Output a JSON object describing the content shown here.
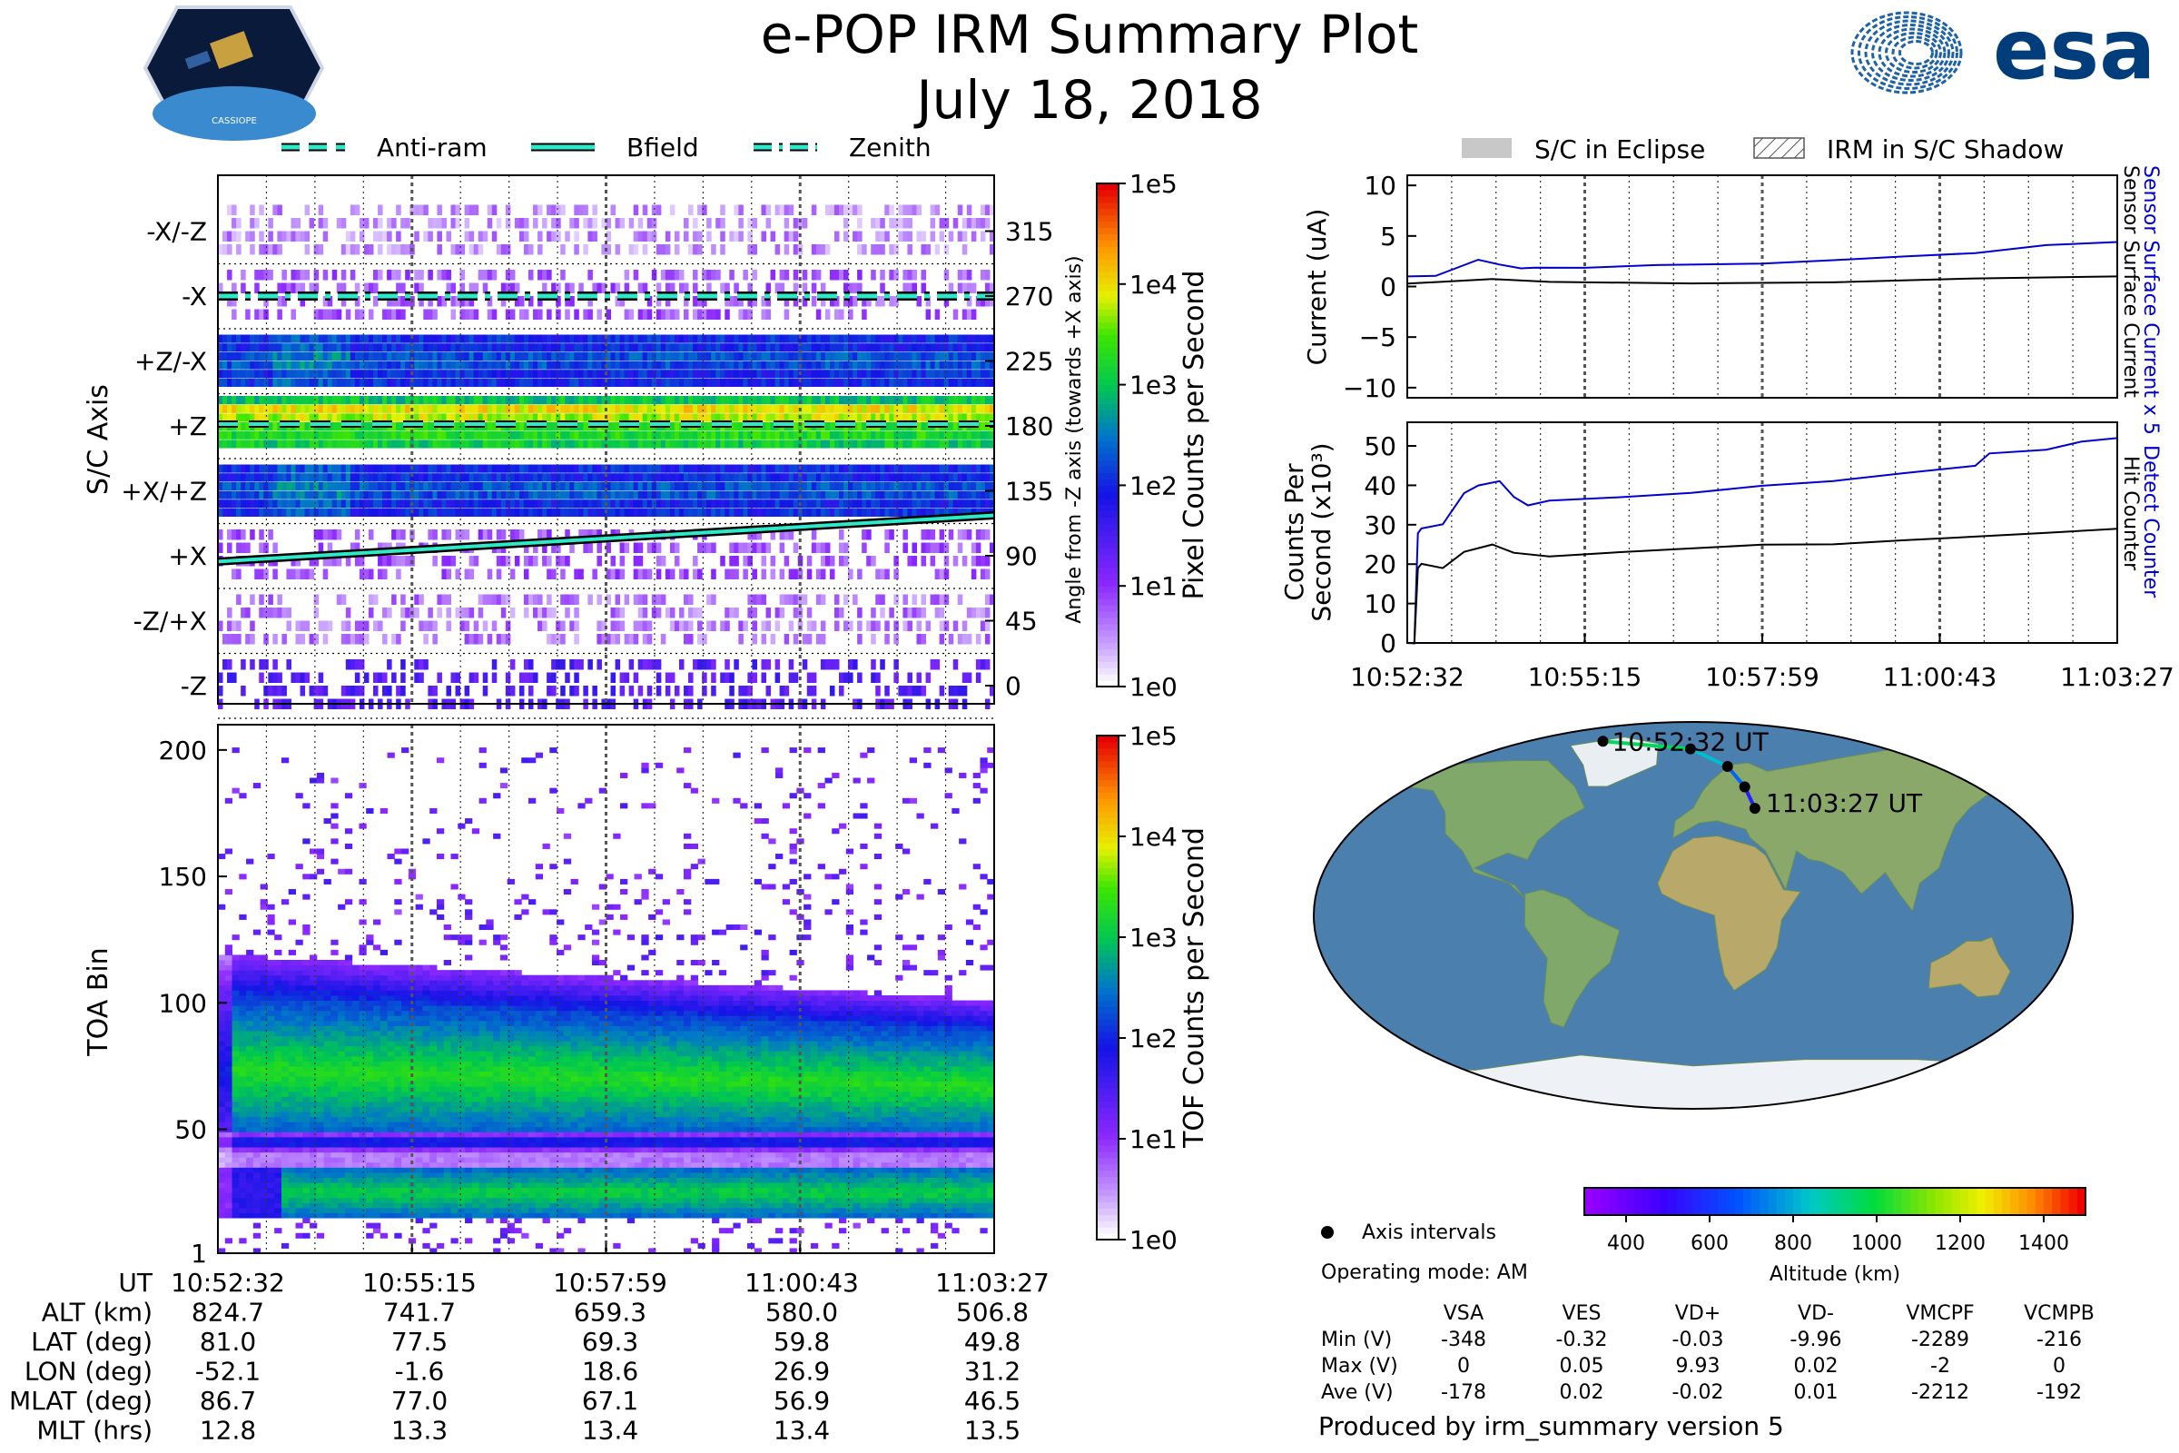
{
  "title": "e-POP IRM Summary Plot",
  "date": "July 18, 2018",
  "esa_logo_text": "esa",
  "mission_badge_text": "CASSIOPE",
  "legend_top": [
    {
      "label": "Anti-ram",
      "style": "dashed"
    },
    {
      "label": "Bfield",
      "style": "solid"
    },
    {
      "label": "Zenith",
      "style": "dashdot"
    }
  ],
  "legend_right": [
    {
      "label": "S/C in Eclipse",
      "style": "gray-fill"
    },
    {
      "label": "IRM in S/C Shadow",
      "style": "hatched"
    }
  ],
  "chart_data": [
    {
      "id": "pixel_spectrogram",
      "type": "heatmap",
      "ylabel": "S/C Axis",
      "ylabel_right": "Angle from -Z axis (towards +X axis)",
      "axis_labels": [
        "-X/-Z",
        "-X",
        "+Z/-X",
        "+Z",
        "+X/+Z",
        "+X",
        "-Z/+X",
        "-Z"
      ],
      "angle_ticks": [
        "315",
        "270",
        "225",
        "180",
        "135",
        "90",
        "45",
        "0"
      ],
      "colorbar_label": "Pixel Counts per Second",
      "colorbar_ticks": [
        "1e0",
        "1e1",
        "1e2",
        "1e3",
        "1e4",
        "1e5"
      ],
      "bfield_angle_start": 86,
      "bfield_angle_end": 118,
      "zenith_angle": 270,
      "antiram_angle": 180
    },
    {
      "id": "toa_spectrogram",
      "type": "heatmap",
      "ylabel": "TOA Bin",
      "y_ticks": [
        "200",
        "150",
        "100",
        "50",
        "1"
      ],
      "ylim": [
        1,
        210
      ],
      "colorbar_label": "TOF Counts per Second",
      "colorbar_ticks": [
        "1e0",
        "1e1",
        "1e2",
        "1e3",
        "1e4",
        "1e5"
      ]
    },
    {
      "id": "current",
      "type": "line",
      "ylabel": "Current (uA)",
      "y_ticks": [
        "10",
        "5",
        "0",
        "−5",
        "−10"
      ],
      "ylim": [
        -11,
        11
      ],
      "right_label_blue": "Sensor Surface Current x 5",
      "right_label_black": "Sensor Surface Current",
      "series": [
        {
          "name": "Sensor Surface Current x 5",
          "color": "#0000cc",
          "x": [
            0,
            0.04,
            0.1,
            0.13,
            0.16,
            0.18,
            0.25,
            0.35,
            0.5,
            0.6,
            0.7,
            0.8,
            0.9,
            1.0
          ],
          "values": [
            1.0,
            1.1,
            2.6,
            2.3,
            1.9,
            1.8,
            1.8,
            2.0,
            2.3,
            2.5,
            3.0,
            3.4,
            4.0,
            4.4
          ]
        },
        {
          "name": "Sensor Surface Current",
          "color": "#000000",
          "x": [
            0,
            0.05,
            0.12,
            0.2,
            0.4,
            0.6,
            0.8,
            1.0
          ],
          "values": [
            0.3,
            0.4,
            0.7,
            0.4,
            0.4,
            0.5,
            0.7,
            1.0
          ]
        }
      ]
    },
    {
      "id": "counts",
      "type": "line",
      "ylabel": "Counts Per",
      "ylabel2": "Second (x10³)",
      "y_ticks": [
        "50",
        "40",
        "30",
        "20",
        "10",
        "0"
      ],
      "ylim": [
        0,
        56
      ],
      "right_label_blue": "Detect Counter",
      "right_label_black": "Hit Counter",
      "series": [
        {
          "name": "Detect Counter",
          "color": "#0000cc",
          "x": [
            0,
            0.01,
            0.015,
            0.02,
            0.05,
            0.08,
            0.1,
            0.13,
            0.15,
            0.17,
            0.2,
            0.3,
            0.4,
            0.5,
            0.6,
            0.7,
            0.8,
            0.82,
            0.9,
            0.95,
            1.0
          ],
          "values": [
            0,
            0,
            28,
            29,
            30,
            38,
            40,
            41,
            37,
            35,
            36,
            37,
            38,
            40,
            41,
            43,
            45,
            48,
            49,
            51,
            52
          ]
        },
        {
          "name": "Hit Counter",
          "color": "#000000",
          "x": [
            0,
            0.01,
            0.015,
            0.02,
            0.05,
            0.08,
            0.12,
            0.15,
            0.2,
            0.3,
            0.4,
            0.5,
            0.6,
            0.7,
            0.8,
            0.9,
            1.0
          ],
          "values": [
            0,
            0,
            19,
            20,
            19,
            23,
            25,
            23,
            22,
            23,
            24,
            25,
            25,
            26,
            27,
            28,
            29
          ]
        }
      ]
    }
  ],
  "time_ticks": [
    "10:52:32",
    "10:55:15",
    "10:57:59",
    "11:00:43",
    "11:03:27"
  ],
  "ephemeris": {
    "rows": [
      {
        "label": "UT",
        "values": [
          "10:52:32",
          "10:55:15",
          "10:57:59",
          "11:00:43",
          "11:03:27"
        ]
      },
      {
        "label": "ALT (km)",
        "values": [
          "824.7",
          "741.7",
          "659.3",
          "580.0",
          "506.8"
        ]
      },
      {
        "label": "LAT (deg)",
        "values": [
          "81.0",
          "77.5",
          "69.3",
          "59.8",
          "49.8"
        ]
      },
      {
        "label": "LON (deg)",
        "values": [
          "-52.1",
          "-1.6",
          "18.6",
          "26.9",
          "31.2"
        ]
      },
      {
        "label": "MLAT (deg)",
        "values": [
          "86.7",
          "77.0",
          "67.1",
          "56.9",
          "46.5"
        ]
      },
      {
        "label": "MLT (hrs)",
        "values": [
          "12.8",
          "13.3",
          "13.4",
          "13.4",
          "13.5"
        ]
      }
    ]
  },
  "map": {
    "start_label": "10:52:32 UT",
    "end_label": "11:03:27 UT",
    "axis_intervals_label": "Axis intervals",
    "operating_mode": "Operating mode: AM",
    "altitude_label": "Altitude (km)",
    "altitude_ticks": [
      "400",
      "600",
      "800",
      "1000",
      "1200",
      "1400"
    ],
    "track_lonlat": [
      [
        -52.1,
        81.0
      ],
      [
        -1.6,
        77.5
      ],
      [
        18.6,
        69.3
      ],
      [
        26.9,
        59.8
      ],
      [
        31.2,
        49.8
      ]
    ]
  },
  "voltages": {
    "columns": [
      "VSA",
      "VES",
      "VD+",
      "VD-",
      "VMCPF",
      "VCMPB"
    ],
    "rows": [
      {
        "label": "Min (V)",
        "values": [
          "-348",
          "-0.32",
          "-0.03",
          "-9.96",
          "-2289",
          "-216"
        ]
      },
      {
        "label": "Max (V)",
        "values": [
          "0",
          "0.05",
          "9.93",
          "0.02",
          "-2",
          "0"
        ]
      },
      {
        "label": "Ave (V)",
        "values": [
          "-178",
          "0.02",
          "-0.02",
          "0.01",
          "-2212",
          "-192"
        ]
      }
    ]
  },
  "footer": "Produced by irm_summary version 5"
}
